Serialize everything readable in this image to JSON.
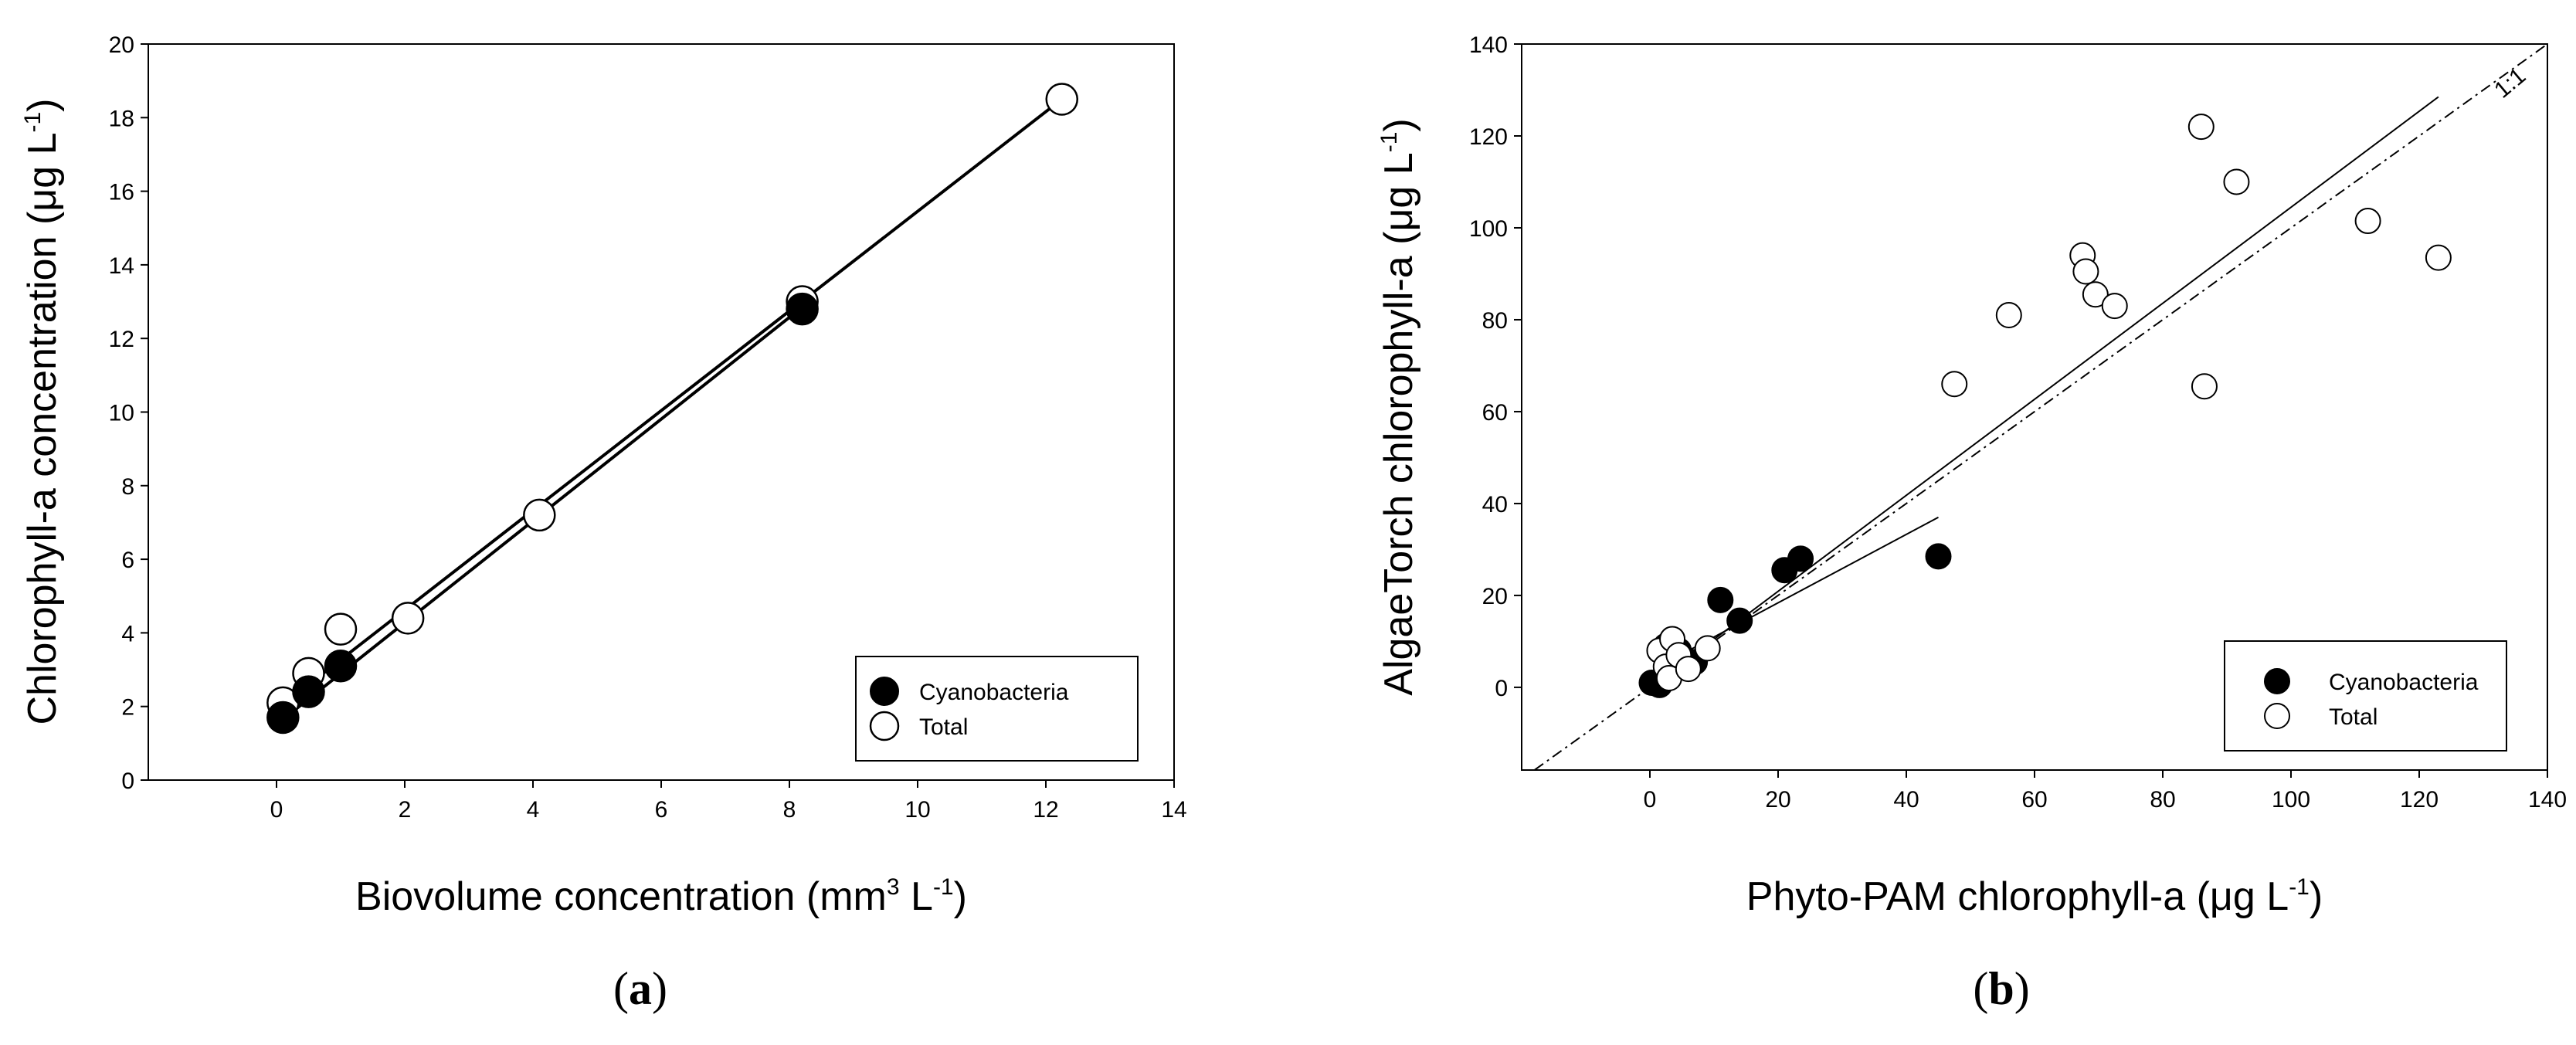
{
  "chart_data": [
    {
      "panel": "a",
      "type": "scatter",
      "xlabel": "Biovolume concentration (mm",
      "xlabel_sup1": "3",
      "xlabel_mid": " L",
      "xlabel_sup2": "-1",
      "xlabel_end": ")",
      "ylabel": "Chlorophyll-a concentration (μg L",
      "ylabel_sup": "-1",
      "ylabel_end": ")",
      "xlim": [
        -2,
        14
      ],
      "ylim": [
        0,
        20
      ],
      "xticks": [
        0,
        2,
        4,
        6,
        8,
        10,
        12,
        14
      ],
      "yticks": [
        0,
        2,
        4,
        6,
        8,
        10,
        12,
        14,
        16,
        18,
        20
      ],
      "legend": {
        "placement": "bottom-right",
        "entries": [
          "Cyanobacteria",
          "Total"
        ]
      },
      "series": [
        {
          "name": "Cyanobacteria",
          "marker": "filled",
          "x": [
            0.1,
            0.5,
            1.0,
            8.2
          ],
          "y": [
            1.7,
            2.4,
            3.1,
            12.8
          ],
          "fit": {
            "x": [
              0.1,
              8.2
            ],
            "y": [
              1.65,
              12.85
            ]
          }
        },
        {
          "name": "Total",
          "marker": "open",
          "x": [
            0.1,
            0.5,
            1.0,
            2.05,
            4.1,
            8.2,
            12.25
          ],
          "y": [
            2.1,
            2.9,
            4.1,
            4.4,
            7.2,
            13.0,
            18.5
          ],
          "fit": {
            "x": [
              0.1,
              12.25
            ],
            "y": [
              2.05,
              18.5
            ]
          }
        }
      ],
      "panel_label": "a"
    },
    {
      "panel": "b",
      "type": "scatter",
      "xlabel": "Phyto-PAM chlorophyll-a (μg L",
      "xlabel_sup": "-1",
      "xlabel_end": ")",
      "ylabel": "AlgaeTorch chlorophyll-a (μg L",
      "ylabel_sup": "-1",
      "ylabel_end": ")",
      "xlim": [
        -20,
        140
      ],
      "ylim": [
        -18,
        140
      ],
      "xticks": [
        0,
        20,
        40,
        60,
        80,
        100,
        120,
        140
      ],
      "yticks": [
        0,
        20,
        40,
        60,
        80,
        100,
        120,
        140
      ],
      "one_to_one_label": "1:1",
      "legend": {
        "placement": "bottom-right",
        "entries": [
          "Cyanobacteria",
          "Total"
        ]
      },
      "series": [
        {
          "name": "Cyanobacteria",
          "marker": "filled",
          "x": [
            0.3,
            1.5,
            2.5,
            4.5,
            7.0,
            11.0,
            14.0,
            21.0,
            23.5,
            45.0
          ],
          "y": [
            1.0,
            0.5,
            9.0,
            8.0,
            5.5,
            19.0,
            14.5,
            25.5,
            28.0,
            28.5
          ],
          "fit": {
            "x": [
              2.0,
              45.0
            ],
            "y": [
              5.0,
              37.0
            ]
          }
        },
        {
          "name": "Total",
          "marker": "open",
          "x": [
            1.5,
            2.5,
            3.0,
            3.5,
            4.5,
            6.0,
            9.0,
            47.5,
            56.0,
            67.5,
            68.0,
            69.5,
            72.5,
            86.0,
            86.5,
            91.5,
            112.0,
            123.0
          ],
          "y": [
            8.0,
            4.5,
            2.0,
            10.5,
            7.0,
            4.0,
            8.5,
            66.0,
            81.0,
            94.0,
            90.5,
            85.5,
            83.0,
            122.0,
            65.5,
            110.0,
            101.5,
            93.5
          ],
          "fit": {
            "x": [
              0,
              123.0
            ],
            "y": [
              0,
              128.5
            ]
          }
        }
      ],
      "panel_label": "b"
    }
  ]
}
